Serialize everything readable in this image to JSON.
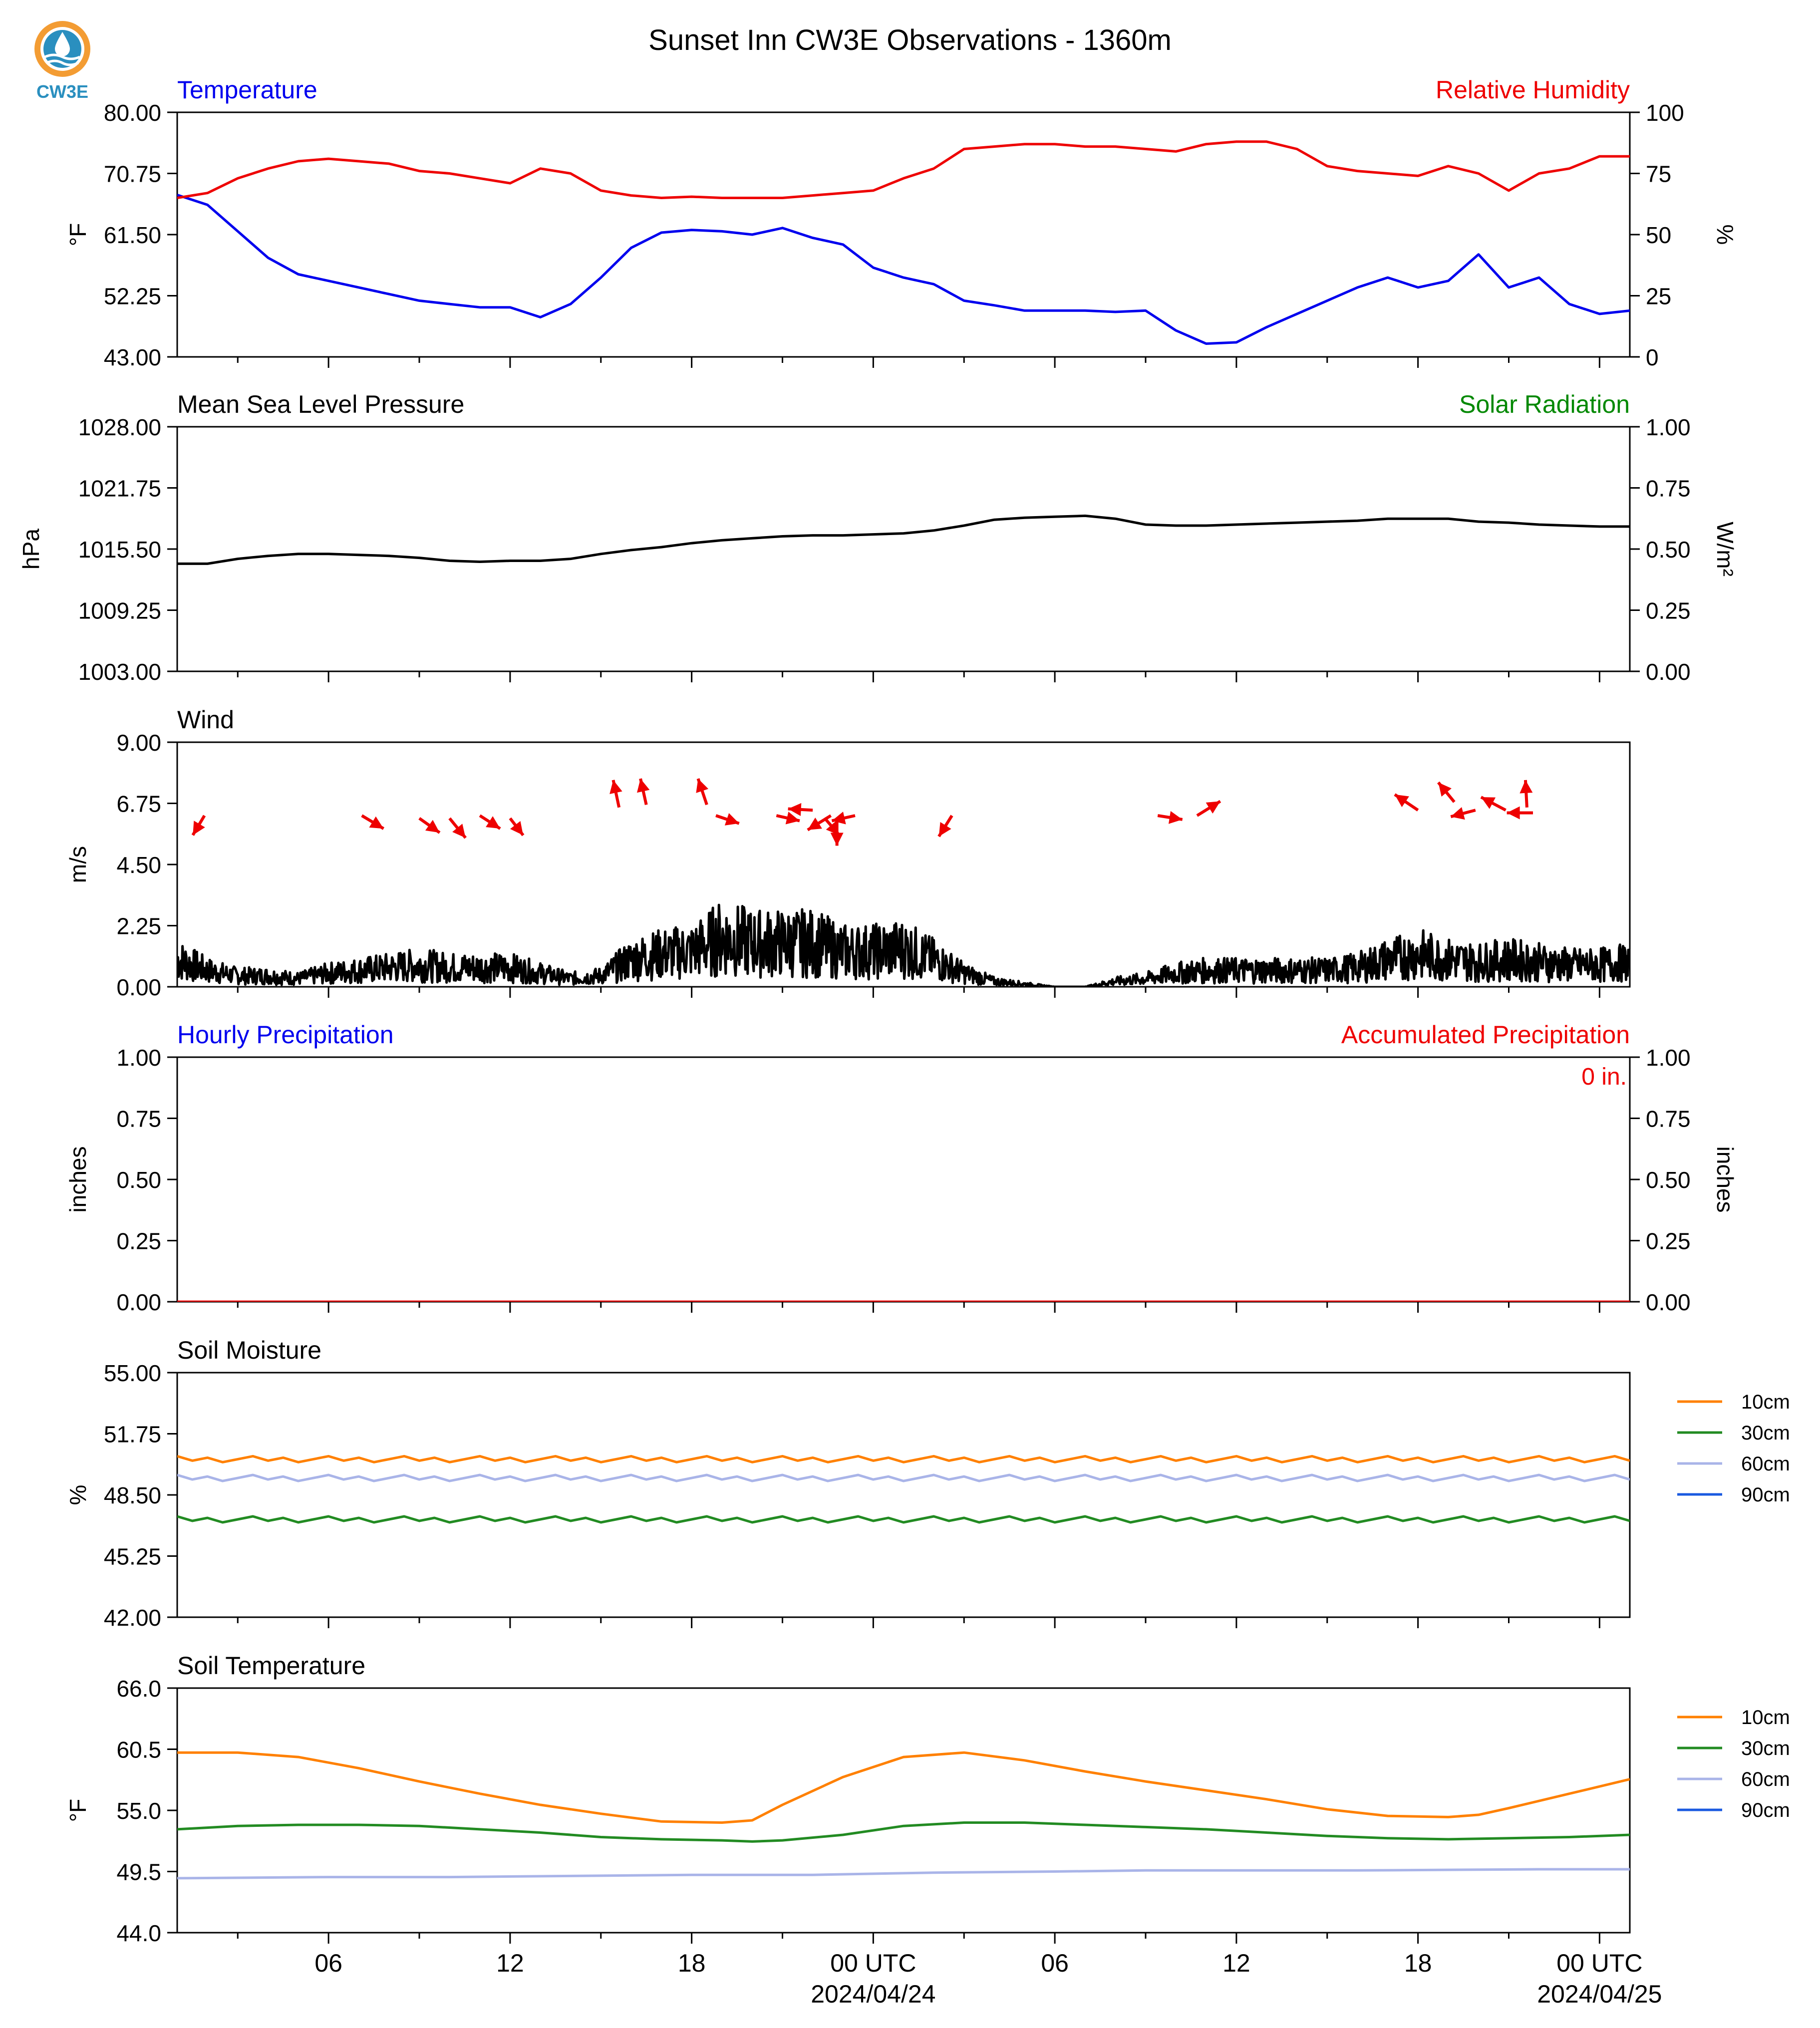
{
  "title": "Sunset Inn CW3E Observations - 1360m",
  "logo": {
    "text": "CW3E",
    "color_primary": "#2a8fbf",
    "color_accent": "#f39c33"
  },
  "colors": {
    "temp": "#0000ee",
    "rh": "#ee0000",
    "black": "#000000",
    "solar": "#008800",
    "soil10": "#ff8000",
    "soil30": "#228b22",
    "soil60": "#a9b4e8",
    "soil90": "#1a5ae0"
  },
  "x_axis": {
    "ticks": [
      {
        "hour": 6,
        "label": "06"
      },
      {
        "hour": 12,
        "label": "12"
      },
      {
        "hour": 18,
        "label": "18"
      },
      {
        "hour": 24,
        "label": "00 UTC",
        "sublabel": "2024/04/24"
      },
      {
        "hour": 30,
        "label": "06"
      },
      {
        "hour": 36,
        "label": "12"
      },
      {
        "hour": 42,
        "label": "18"
      },
      {
        "hour": 48,
        "label": "00 UTC",
        "sublabel": "2024/04/25"
      }
    ],
    "range_hours": [
      1,
      49
    ]
  },
  "chart_data": [
    {
      "id": "temp_rh",
      "type": "line",
      "left_title": "Temperature",
      "right_title": "Relative Humidity",
      "ylabel": "°F",
      "ylabel_right": "%",
      "ylim": [
        43,
        80
      ],
      "yticks": [
        "80.00",
        "70.75",
        "61.50",
        "52.25",
        "43.00"
      ],
      "ylim_right": [
        0,
        100
      ],
      "yticks_right": [
        "100",
        "75",
        "50",
        "25",
        "0"
      ],
      "series": [
        {
          "name": "Temperature",
          "axis": "left",
          "color": "#0000ee",
          "x": [
            1,
            2,
            3,
            4,
            5,
            6,
            7,
            8,
            9,
            10,
            11,
            12,
            13,
            14,
            15,
            16,
            17,
            18,
            19,
            20,
            21,
            22,
            23,
            24,
            25,
            26,
            27,
            28,
            29,
            30,
            31,
            32,
            33,
            34,
            35,
            36,
            37,
            38,
            39,
            40,
            41,
            42,
            43,
            44,
            45,
            46,
            47,
            48,
            49
          ],
          "y": [
            67.5,
            66,
            62,
            58,
            55.5,
            54.5,
            53.5,
            52.5,
            51.5,
            51,
            50.5,
            50.5,
            49,
            51,
            55,
            59.5,
            61.8,
            62.2,
            62,
            61.5,
            62.5,
            61,
            60,
            56.5,
            55,
            54,
            51.5,
            50.8,
            50,
            50,
            50,
            49.8,
            50,
            47,
            45,
            45.2,
            47.5,
            49.5,
            51.5,
            53.5,
            55,
            53.5,
            54.5,
            58.5,
            53.5,
            55,
            51,
            49.5,
            50
          ]
        },
        {
          "name": "Relative Humidity",
          "axis": "right",
          "color": "#ee0000",
          "x": [
            1,
            2,
            3,
            4,
            5,
            6,
            7,
            8,
            9,
            10,
            11,
            12,
            13,
            14,
            15,
            16,
            17,
            18,
            19,
            20,
            21,
            22,
            23,
            24,
            25,
            26,
            27,
            28,
            29,
            30,
            31,
            32,
            33,
            34,
            35,
            36,
            37,
            38,
            39,
            40,
            41,
            42,
            43,
            44,
            45,
            46,
            47,
            48,
            49
          ],
          "y": [
            65,
            67,
            73,
            77,
            80,
            81,
            80,
            79,
            76,
            75,
            73,
            71,
            77,
            75,
            68,
            66,
            65,
            65.5,
            65,
            65,
            65,
            66,
            67,
            68,
            73,
            77,
            85,
            86,
            87,
            87,
            86,
            86,
            85,
            84,
            87,
            88,
            88,
            85,
            78,
            76,
            75,
            74,
            78,
            75,
            68,
            75,
            77,
            82,
            82
          ]
        }
      ]
    },
    {
      "id": "pressure",
      "type": "line",
      "left_title": "Mean Sea Level Pressure",
      "right_title": "Solar Radiation",
      "ylabel": "hPa",
      "ylabel_right": "W/m²",
      "ylim": [
        1003,
        1028
      ],
      "yticks": [
        "1028.00",
        "1021.75",
        "1015.50",
        "1009.25",
        "1003.00"
      ],
      "ylim_right": [
        0,
        1
      ],
      "yticks_right": [
        "1.00",
        "0.75",
        "0.50",
        "0.25",
        "0.00"
      ],
      "series": [
        {
          "name": "Mean Sea Level Pressure",
          "axis": "left",
          "color": "#000000",
          "x": [
            1,
            2,
            3,
            4,
            5,
            6,
            7,
            8,
            9,
            10,
            11,
            12,
            13,
            14,
            15,
            16,
            17,
            18,
            19,
            20,
            21,
            22,
            23,
            24,
            25,
            26,
            27,
            28,
            29,
            30,
            31,
            32,
            33,
            34,
            35,
            36,
            37,
            38,
            39,
            40,
            41,
            42,
            43,
            44,
            45,
            46,
            47,
            48,
            49
          ],
          "y": [
            1014.0,
            1014.0,
            1014.5,
            1014.8,
            1015.0,
            1015.0,
            1014.9,
            1014.8,
            1014.6,
            1014.3,
            1014.2,
            1014.3,
            1014.3,
            1014.5,
            1015.0,
            1015.4,
            1015.7,
            1016.1,
            1016.4,
            1016.6,
            1016.8,
            1016.9,
            1016.9,
            1017.0,
            1017.1,
            1017.4,
            1017.9,
            1018.5,
            1018.7,
            1018.8,
            1018.9,
            1018.6,
            1018.0,
            1017.9,
            1017.9,
            1018.0,
            1018.1,
            1018.2,
            1018.3,
            1018.4,
            1018.6,
            1018.6,
            1018.6,
            1018.3,
            1018.2,
            1018.0,
            1017.9,
            1017.8,
            1017.8
          ]
        }
      ]
    },
    {
      "id": "wind",
      "type": "line",
      "left_title": "Wind",
      "ylabel": "m/s",
      "ylim": [
        0,
        9
      ],
      "yticks": [
        "9.00",
        "6.75",
        "4.50",
        "2.25",
        "0.00"
      ],
      "series": [
        {
          "name": "Wind",
          "axis": "left",
          "color": "#000000",
          "x": [
            1,
            2,
            3,
            4,
            5,
            6,
            7,
            8,
            9,
            10,
            11,
            12,
            13,
            14,
            15,
            16,
            17,
            18,
            19,
            20,
            21,
            22,
            23,
            24,
            25,
            26,
            27,
            28,
            29,
            30,
            31,
            32,
            33,
            34,
            35,
            36,
            37,
            38,
            39,
            40,
            41,
            42,
            43,
            44,
            45,
            46,
            47,
            48,
            49
          ],
          "y": [
            1.0,
            0.6,
            0.4,
            0.4,
            0.3,
            0.5,
            0.6,
            0.7,
            0.8,
            0.7,
            0.7,
            0.7,
            0.5,
            0.3,
            0.4,
            1.0,
            1.2,
            1.3,
            1.8,
            1.6,
            1.6,
            1.6,
            1.3,
            1.3,
            1.4,
            1.0,
            0.5,
            0.2,
            0.1,
            0.0,
            0.0,
            0.2,
            0.3,
            0.5,
            0.6,
            0.6,
            0.6,
            0.6,
            0.6,
            0.7,
            1.0,
            1.2,
            1.0,
            0.9,
            1.0,
            0.9,
            0.8,
            0.8,
            0.9
          ]
        },
        {
          "name": "Wind direction",
          "axis": "left",
          "color": "#ee0000",
          "type": "arrows",
          "points": [
            {
              "x": 1.9,
              "y": 6.3,
              "dx": -0.8,
              "dy": -1.5
            },
            {
              "x": 7.1,
              "y": 6.3,
              "dx": 1.5,
              "dy": -1.0
            },
            {
              "x": 9.0,
              "y": 6.2,
              "dx": 1.4,
              "dy": -1.1
            },
            {
              "x": 10.0,
              "y": 6.2,
              "dx": 1.1,
              "dy": -1.5
            },
            {
              "x": 11.0,
              "y": 6.3,
              "dx": 1.4,
              "dy": -1.0
            },
            {
              "x": 12.0,
              "y": 6.2,
              "dx": 0.9,
              "dy": -1.3
            },
            {
              "x": 15.6,
              "y": 6.6,
              "dx": -0.4,
              "dy": 2.1
            },
            {
              "x": 16.5,
              "y": 6.7,
              "dx": -0.4,
              "dy": 2.0
            },
            {
              "x": 18.5,
              "y": 6.7,
              "dx": -0.6,
              "dy": 2.0
            },
            {
              "x": 18.8,
              "y": 6.3,
              "dx": 1.6,
              "dy": -0.6
            },
            {
              "x": 20.8,
              "y": 6.3,
              "dx": 1.6,
              "dy": -0.4
            },
            {
              "x": 22.0,
              "y": 6.5,
              "dx": -1.7,
              "dy": 0.1
            },
            {
              "x": 22.4,
              "y": 6.2,
              "dx": 1.0,
              "dy": -1.3
            },
            {
              "x": 22.6,
              "y": 6.3,
              "dx": -1.6,
              "dy": -1.1
            },
            {
              "x": 23.4,
              "y": 6.3,
              "dx": -1.6,
              "dy": -0.4
            },
            {
              "x": 22.8,
              "y": 6.2,
              "dx": 0.0,
              "dy": -2.1
            },
            {
              "x": 26.6,
              "y": 6.3,
              "dx": -0.9,
              "dy": -1.6
            },
            {
              "x": 33.4,
              "y": 6.3,
              "dx": 1.7,
              "dy": -0.3
            },
            {
              "x": 34.7,
              "y": 6.3,
              "dx": 1.6,
              "dy": 1.1
            },
            {
              "x": 42.0,
              "y": 6.5,
              "dx": -1.6,
              "dy": 1.2
            },
            {
              "x": 43.2,
              "y": 6.8,
              "dx": -1.1,
              "dy": 1.5
            },
            {
              "x": 43.9,
              "y": 6.5,
              "dx": -1.7,
              "dy": -0.5
            },
            {
              "x": 44.9,
              "y": 6.5,
              "dx": -1.7,
              "dy": 1.0
            },
            {
              "x": 45.8,
              "y": 6.4,
              "dx": -1.8,
              "dy": 0.0
            },
            {
              "x": 45.6,
              "y": 6.6,
              "dx": -0.1,
              "dy": 2.1
            }
          ]
        }
      ]
    },
    {
      "id": "precip",
      "type": "line",
      "left_title": "Hourly Precipitation",
      "right_title": "Accumulated Precipitation",
      "annotation": "0 in.",
      "ylabel": "inches",
      "ylabel_right": "inches",
      "ylim": [
        0,
        1
      ],
      "yticks": [
        "1.00",
        "0.75",
        "0.50",
        "0.25",
        "0.00"
      ],
      "ylim_right": [
        0,
        1
      ],
      "yticks_right": [
        "1.00",
        "0.75",
        "0.50",
        "0.25",
        "0.00"
      ],
      "series": [
        {
          "name": "Hourly Precipitation",
          "axis": "left",
          "color": "#0000ee",
          "x": [
            1,
            49
          ],
          "y": [
            0,
            0
          ]
        },
        {
          "name": "Accumulated Precipitation",
          "axis": "right",
          "color": "#ee0000",
          "x": [
            1,
            49
          ],
          "y": [
            0,
            0
          ]
        }
      ]
    },
    {
      "id": "soil_moisture",
      "type": "line",
      "left_title": "Soil Moisture",
      "ylabel": "%",
      "ylim": [
        42,
        55
      ],
      "yticks": [
        "55.00",
        "51.75",
        "48.50",
        "45.25",
        "42.00"
      ],
      "legend": [
        "10cm",
        "30cm",
        "60cm",
        "90cm"
      ],
      "series": [
        {
          "name": "10cm",
          "color": "#ff8000",
          "x": [
            1,
            49
          ],
          "y": [
            50.4,
            50.4
          ]
        },
        {
          "name": "30cm",
          "color": "#228b22",
          "x": [
            1,
            49
          ],
          "y": [
            47.2,
            47.2
          ]
        },
        {
          "name": "60cm",
          "color": "#a9b4e8",
          "x": [
            1,
            49
          ],
          "y": [
            49.4,
            49.4
          ]
        }
      ]
    },
    {
      "id": "soil_temp",
      "type": "line",
      "left_title": "Soil Temperature",
      "ylabel": "°F",
      "ylim": [
        44,
        66
      ],
      "yticks": [
        "66.0",
        "60.5",
        "55.0",
        "49.5",
        "44.0"
      ],
      "legend": [
        "10cm",
        "30cm",
        "60cm",
        "90cm"
      ],
      "series": [
        {
          "name": "10cm",
          "color": "#ff8000",
          "x": [
            1,
            3,
            5,
            7,
            9,
            11,
            13,
            15,
            17,
            19,
            20,
            21,
            23,
            25,
            27,
            29,
            31,
            33,
            35,
            37,
            39,
            41,
            43,
            44,
            45,
            47,
            49
          ],
          "y": [
            60.2,
            60.2,
            59.8,
            58.8,
            57.6,
            56.5,
            55.5,
            54.7,
            54.0,
            53.9,
            54.1,
            55.5,
            58.0,
            59.8,
            60.2,
            59.5,
            58.5,
            57.6,
            56.8,
            56.0,
            55.1,
            54.5,
            54.4,
            54.6,
            55.2,
            56.5,
            57.8
          ]
        },
        {
          "name": "30cm",
          "color": "#228b22",
          "x": [
            1,
            3,
            5,
            7,
            9,
            11,
            13,
            15,
            17,
            19,
            20,
            21,
            23,
            25,
            27,
            29,
            31,
            33,
            35,
            37,
            39,
            41,
            43,
            45,
            47,
            49
          ],
          "y": [
            53.3,
            53.6,
            53.7,
            53.7,
            53.6,
            53.3,
            53.0,
            52.6,
            52.4,
            52.3,
            52.2,
            52.3,
            52.8,
            53.6,
            53.9,
            53.9,
            53.7,
            53.5,
            53.3,
            53.0,
            52.7,
            52.5,
            52.4,
            52.5,
            52.6,
            52.8
          ]
        },
        {
          "name": "60cm",
          "color": "#a9b4e8",
          "x": [
            1,
            6,
            10,
            18,
            22,
            26,
            30,
            33,
            37,
            40,
            46,
            49
          ],
          "y": [
            48.9,
            49.0,
            49.0,
            49.2,
            49.2,
            49.4,
            49.5,
            49.6,
            49.6,
            49.6,
            49.7,
            49.7
          ]
        }
      ]
    }
  ]
}
